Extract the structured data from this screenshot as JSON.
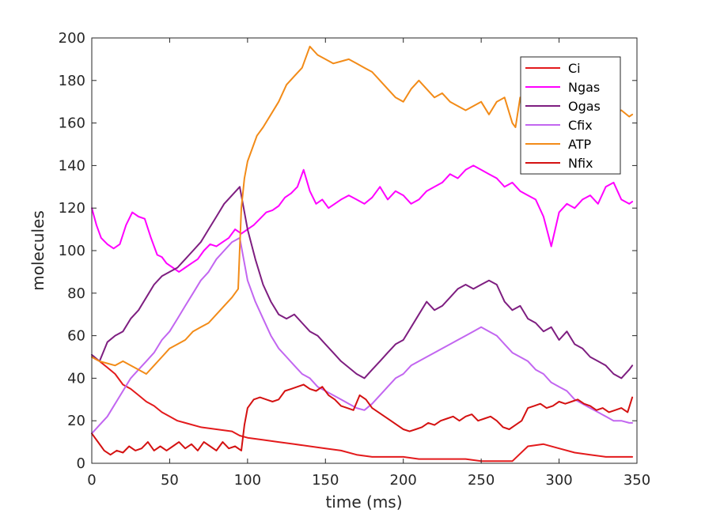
{
  "chart_data": {
    "type": "line",
    "title": "",
    "xlabel": "time (ms)",
    "ylabel": "molecules",
    "xlim": [
      0,
      350
    ],
    "ylim": [
      0,
      200
    ],
    "xticks": [
      0,
      50,
      100,
      150,
      200,
      250,
      300,
      350
    ],
    "yticks": [
      0,
      20,
      40,
      60,
      80,
      100,
      120,
      140,
      160,
      180,
      200
    ],
    "grid": false,
    "legend_position": "top-right",
    "series": [
      {
        "name": "Ci",
        "color": "#e31a1c",
        "x": [
          0,
          5,
          10,
          15,
          20,
          25,
          30,
          35,
          40,
          45,
          50,
          55,
          60,
          70,
          80,
          90,
          95,
          100,
          110,
          120,
          130,
          140,
          150,
          160,
          170,
          180,
          190,
          200,
          210,
          220,
          230,
          240,
          250,
          260,
          270,
          280,
          290,
          300,
          310,
          320,
          330,
          340,
          347
        ],
        "y": [
          50,
          48,
          45,
          42,
          37,
          35,
          32,
          29,
          27,
          24,
          22,
          20,
          19,
          17,
          16,
          15,
          13,
          12,
          11,
          10,
          9,
          8,
          7,
          6,
          4,
          3,
          3,
          3,
          2,
          2,
          2,
          2,
          1,
          1,
          1,
          8,
          9,
          7,
          5,
          4,
          3,
          3,
          3
        ]
      },
      {
        "name": "Ngas",
        "color": "#ff00ff",
        "x": [
          0,
          3,
          6,
          10,
          14,
          18,
          22,
          26,
          30,
          34,
          38,
          42,
          45,
          48,
          52,
          56,
          60,
          64,
          68,
          72,
          76,
          80,
          84,
          88,
          92,
          96,
          100,
          104,
          108,
          112,
          116,
          120,
          124,
          128,
          132,
          136,
          140,
          144,
          148,
          152,
          156,
          160,
          165,
          170,
          175,
          180,
          185,
          190,
          195,
          200,
          205,
          210,
          215,
          220,
          225,
          230,
          235,
          240,
          245,
          250,
          255,
          260,
          265,
          270,
          275,
          280,
          285,
          290,
          295,
          300,
          305,
          310,
          315,
          320,
          325,
          330,
          335,
          340,
          345,
          347
        ],
        "y": [
          120,
          112,
          106,
          103,
          101,
          103,
          112,
          118,
          116,
          115,
          106,
          98,
          97,
          94,
          92,
          90,
          92,
          94,
          96,
          100,
          103,
          102,
          104,
          106,
          110,
          108,
          110,
          112,
          115,
          118,
          119,
          121,
          125,
          127,
          130,
          138,
          128,
          122,
          124,
          120,
          122,
          124,
          126,
          124,
          122,
          125,
          130,
          124,
          128,
          126,
          122,
          124,
          128,
          130,
          132,
          136,
          134,
          138,
          140,
          138,
          136,
          134,
          130,
          132,
          128,
          126,
          124,
          116,
          102,
          118,
          122,
          120,
          124,
          126,
          122,
          130,
          132,
          124,
          122,
          123
        ]
      },
      {
        "name": "Ogas",
        "color": "#7e1e80",
        "x": [
          0,
          5,
          10,
          15,
          20,
          25,
          30,
          35,
          40,
          45,
          50,
          55,
          60,
          65,
          70,
          75,
          80,
          85,
          90,
          95,
          100,
          105,
          110,
          115,
          120,
          125,
          130,
          135,
          140,
          145,
          150,
          155,
          160,
          165,
          170,
          175,
          180,
          185,
          190,
          195,
          200,
          205,
          210,
          215,
          220,
          225,
          230,
          235,
          240,
          245,
          250,
          255,
          260,
          265,
          270,
          275,
          280,
          285,
          290,
          295,
          300,
          305,
          310,
          315,
          320,
          325,
          330,
          335,
          340,
          345,
          347
        ],
        "y": [
          51,
          48,
          57,
          60,
          62,
          68,
          72,
          78,
          84,
          88,
          90,
          92,
          96,
          100,
          104,
          110,
          116,
          122,
          126,
          130,
          110,
          96,
          84,
          76,
          70,
          68,
          70,
          66,
          62,
          60,
          56,
          52,
          48,
          45,
          42,
          40,
          44,
          48,
          52,
          56,
          58,
          64,
          70,
          76,
          72,
          74,
          78,
          82,
          84,
          82,
          84,
          86,
          84,
          76,
          72,
          74,
          68,
          66,
          62,
          64,
          58,
          62,
          56,
          54,
          50,
          48,
          46,
          42,
          40,
          44,
          46
        ]
      },
      {
        "name": "Cfix",
        "color": "#c266f0",
        "x": [
          0,
          5,
          10,
          15,
          20,
          25,
          30,
          35,
          40,
          45,
          50,
          55,
          60,
          65,
          70,
          75,
          80,
          85,
          90,
          95,
          100,
          105,
          110,
          115,
          120,
          125,
          130,
          135,
          140,
          145,
          150,
          155,
          160,
          165,
          170,
          175,
          180,
          185,
          190,
          195,
          200,
          205,
          210,
          215,
          220,
          225,
          230,
          235,
          240,
          245,
          250,
          255,
          260,
          265,
          270,
          275,
          280,
          285,
          290,
          295,
          300,
          305,
          310,
          315,
          320,
          325,
          330,
          335,
          340,
          345,
          347
        ],
        "y": [
          14,
          18,
          22,
          28,
          34,
          40,
          44,
          48,
          52,
          58,
          62,
          68,
          74,
          80,
          86,
          90,
          96,
          100,
          104,
          106,
          86,
          76,
          68,
          60,
          54,
          50,
          46,
          42,
          40,
          36,
          34,
          32,
          30,
          28,
          26,
          25,
          28,
          32,
          36,
          40,
          42,
          46,
          48,
          50,
          52,
          54,
          56,
          58,
          60,
          62,
          64,
          62,
          60,
          56,
          52,
          50,
          48,
          44,
          42,
          38,
          36,
          34,
          30,
          28,
          26,
          24,
          22,
          20,
          20,
          19,
          19
        ]
      },
      {
        "name": "ATP",
        "color": "#f28b18",
        "x": [
          0,
          5,
          10,
          15,
          20,
          25,
          30,
          35,
          40,
          45,
          50,
          55,
          60,
          65,
          70,
          75,
          80,
          85,
          90,
          94,
          96,
          98,
          100,
          103,
          106,
          110,
          115,
          120,
          125,
          130,
          135,
          140,
          145,
          150,
          155,
          160,
          165,
          170,
          175,
          180,
          185,
          190,
          195,
          200,
          205,
          210,
          215,
          220,
          225,
          230,
          235,
          240,
          245,
          250,
          255,
          260,
          265,
          270,
          272,
          275,
          280,
          285,
          290,
          295,
          300,
          305,
          310,
          315,
          320,
          325,
          330,
          335,
          340,
          345,
          347
        ],
        "y": [
          50,
          48,
          47,
          46,
          48,
          46,
          44,
          42,
          46,
          50,
          54,
          56,
          58,
          62,
          64,
          66,
          70,
          74,
          78,
          82,
          120,
          134,
          142,
          148,
          154,
          158,
          164,
          170,
          178,
          182,
          186,
          196,
          192,
          190,
          188,
          189,
          190,
          188,
          186,
          184,
          180,
          176,
          172,
          170,
          176,
          180,
          176,
          172,
          174,
          170,
          168,
          166,
          168,
          170,
          164,
          170,
          172,
          160,
          158,
          172,
          168,
          166,
          164,
          166,
          162,
          164,
          166,
          168,
          164,
          166,
          164,
          165,
          166,
          163,
          164
        ]
      },
      {
        "name": "Nfix",
        "color": "#d41111",
        "x": [
          0,
          4,
          8,
          12,
          16,
          20,
          24,
          28,
          32,
          36,
          40,
          44,
          48,
          52,
          56,
          60,
          64,
          68,
          72,
          76,
          80,
          84,
          88,
          92,
          96,
          98,
          100,
          104,
          108,
          112,
          116,
          120,
          124,
          128,
          132,
          136,
          140,
          144,
          148,
          152,
          156,
          160,
          164,
          168,
          172,
          176,
          180,
          184,
          188,
          192,
          196,
          200,
          204,
          208,
          212,
          216,
          220,
          224,
          228,
          232,
          236,
          240,
          244,
          248,
          252,
          256,
          260,
          264,
          268,
          272,
          276,
          280,
          284,
          288,
          292,
          296,
          300,
          304,
          308,
          312,
          316,
          320,
          324,
          328,
          332,
          336,
          340,
          344,
          347
        ],
        "y": [
          14,
          10,
          6,
          4,
          6,
          5,
          8,
          6,
          7,
          10,
          6,
          8,
          6,
          8,
          10,
          7,
          9,
          6,
          10,
          8,
          6,
          10,
          7,
          8,
          6,
          18,
          26,
          30,
          31,
          30,
          29,
          30,
          34,
          35,
          36,
          37,
          35,
          34,
          36,
          32,
          30,
          27,
          26,
          25,
          32,
          30,
          26,
          24,
          22,
          20,
          18,
          16,
          15,
          16,
          17,
          19,
          18,
          20,
          21,
          22,
          20,
          22,
          23,
          20,
          21,
          22,
          20,
          17,
          16,
          18,
          20,
          26,
          27,
          28,
          26,
          27,
          29,
          28,
          29,
          30,
          28,
          27,
          25,
          26,
          24,
          25,
          26,
          24,
          31
        ]
      }
    ]
  }
}
